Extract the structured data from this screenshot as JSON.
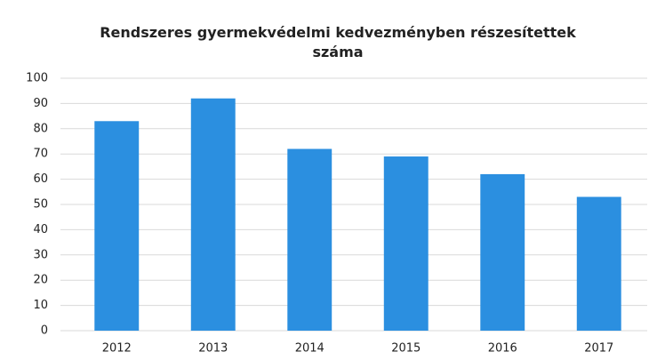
{
  "chart_data": {
    "type": "bar",
    "title": "Rendszeres gyermekvédelmi kedvezményben részesítettek száma",
    "categories": [
      "2012",
      "2013",
      "2014",
      "2015",
      "2016",
      "2017"
    ],
    "values": [
      83,
      92,
      72,
      69,
      62,
      53
    ],
    "color": "#2b8fe0",
    "ylim": [
      0,
      100
    ],
    "yticks": [
      0,
      10,
      20,
      30,
      40,
      50,
      60,
      70,
      80,
      90,
      100
    ],
    "grid": true
  }
}
